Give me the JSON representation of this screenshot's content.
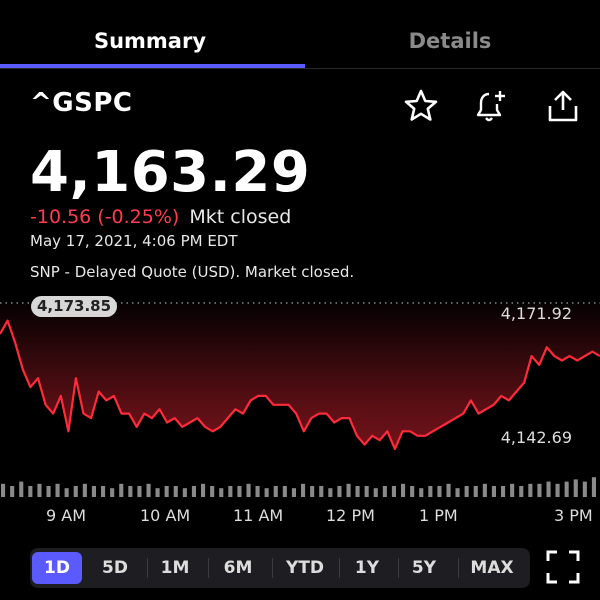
{
  "tabs": [
    {
      "label": "Summary",
      "active": true
    },
    {
      "label": "Details",
      "active": false
    }
  ],
  "quote": {
    "symbol": "^GSPC",
    "price": "4,163.29",
    "change": "-10.56 (-0.25%)",
    "status": "Mkt closed",
    "datetime": "May 17, 2021, 4:06 PM EDT",
    "note": "SNP - Delayed Quote (USD). Market closed."
  },
  "icons": {
    "watchlist": "star-icon",
    "alert": "bell-plus-icon",
    "share": "share-icon",
    "fullscreen": "fullscreen-icon"
  },
  "colors": {
    "accent": "#5a5aff",
    "negative": "#ff3b4f",
    "background": "#000000"
  },
  "chart_data": {
    "type": "line",
    "previous_close": "4,173.85",
    "high_label": "4,171.92",
    "low_label": "4,142.69",
    "x_labels": [
      "9 AM",
      "10 AM",
      "11 AM",
      "12 PM",
      "1 PM",
      "3 PM"
    ],
    "ylim": [
      4135,
      4175
    ],
    "series": [
      {
        "x": [
          0,
          5,
          10,
          15,
          20,
          25,
          30,
          35,
          40,
          45,
          50,
          55,
          60,
          65,
          70,
          75,
          80,
          85,
          90,
          95,
          100,
          105,
          110,
          115,
          120,
          125,
          130,
          135,
          140,
          145,
          150,
          155,
          160,
          165,
          170,
          175,
          180,
          185,
          190,
          195,
          200,
          205,
          210,
          215,
          220,
          225,
          230,
          235,
          240,
          245,
          250,
          255,
          260,
          265,
          270,
          275,
          280,
          285,
          290,
          295,
          300,
          305,
          310,
          315,
          320,
          325,
          330,
          335,
          340,
          345,
          350,
          355,
          360,
          365,
          370,
          375,
          380,
          385,
          390,
          395
        ],
        "values": [
          4168,
          4171,
          4166,
          4160,
          4156,
          4158,
          4152,
          4150,
          4154,
          4146,
          4158,
          4150,
          4149,
          4155,
          4153,
          4154,
          4150,
          4150,
          4147,
          4150,
          4149,
          4151,
          4148,
          4149,
          4147,
          4148,
          4149,
          4147,
          4146,
          4147,
          4149,
          4151,
          4150,
          4153,
          4154,
          4154,
          4152,
          4152,
          4152,
          4150,
          4146,
          4149,
          4150,
          4150,
          4148,
          4149,
          4149,
          4145,
          4143,
          4145,
          4144,
          4146,
          4142,
          4146,
          4146,
          4145,
          4145,
          4146,
          4147,
          4148,
          4149,
          4150,
          4153,
          4150,
          4151,
          4152,
          4154,
          4153,
          4155,
          4157,
          4163,
          4161,
          4165,
          4163,
          4162,
          4163,
          4162,
          4163,
          4164,
          4163
        ]
      }
    ],
    "volume": [
      6,
      5,
      7,
      5,
      6,
      5,
      6,
      4,
      5,
      6,
      5,
      5,
      4,
      6,
      5,
      5,
      6,
      4,
      5,
      5,
      4,
      5,
      6,
      5,
      4,
      5,
      5,
      6,
      5,
      4,
      5,
      5,
      4,
      6,
      5,
      5,
      4,
      5,
      6,
      5,
      5,
      4,
      5,
      5,
      6,
      5,
      4,
      5,
      5,
      6,
      4,
      5,
      5,
      6,
      5,
      5,
      6,
      5,
      6,
      6,
      7,
      6,
      7,
      8,
      7,
      9
    ]
  },
  "ranges": [
    "1D",
    "5D",
    "1M",
    "6M",
    "YTD",
    "1Y",
    "5Y",
    "MAX"
  ],
  "active_range": "1D"
}
